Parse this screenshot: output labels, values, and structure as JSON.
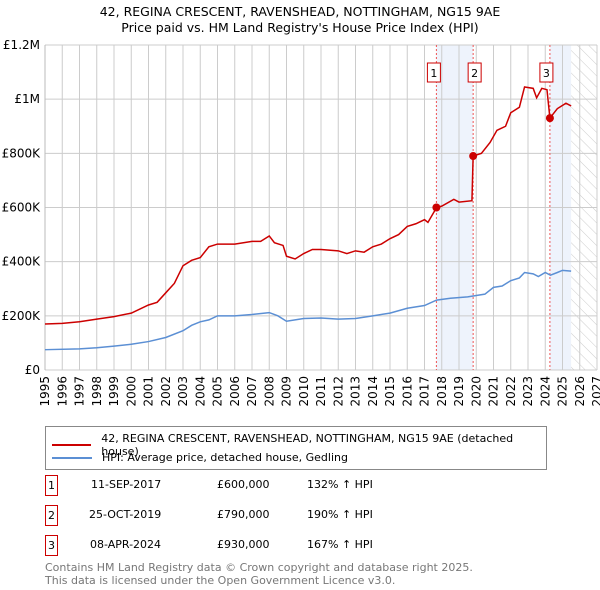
{
  "title": "42, REGINA CRESCENT, RAVENSHEAD, NOTTINGHAM, NG15 9AE",
  "subtitle": "Price paid vs. HM Land Registry's House Price Index (HPI)",
  "colors": {
    "property": "#cc0000",
    "hpi": "#5b8fd4",
    "shade": "#eef3fc"
  },
  "chart_data": {
    "type": "line",
    "title": "42, REGINA CRESCENT, RAVENSHEAD, NOTTINGHAM, NG15 9AE — Price paid vs. HM Land Registry's House Price Index (HPI)",
    "xlim": [
      1995,
      2027
    ],
    "ylim": [
      0,
      1200000
    ],
    "x_ticks": [
      "1995",
      "1996",
      "1997",
      "1998",
      "1999",
      "2000",
      "2001",
      "2002",
      "2003",
      "2004",
      "2005",
      "2006",
      "2007",
      "2008",
      "2009",
      "2010",
      "2011",
      "2012",
      "2013",
      "2014",
      "2015",
      "2016",
      "2017",
      "2018",
      "2019",
      "2020",
      "2021",
      "2022",
      "2023",
      "2024",
      "2025",
      "2026",
      "2027"
    ],
    "y_ticks": [
      {
        "v": 0,
        "label": "£0"
      },
      {
        "v": 200000,
        "label": "£200K"
      },
      {
        "v": 400000,
        "label": "£400K"
      },
      {
        "v": 600000,
        "label": "£600K"
      },
      {
        "v": 800000,
        "label": "£800K"
      },
      {
        "v": 1000000,
        "label": "£1M"
      },
      {
        "v": 1200000,
        "label": "£1.2M"
      }
    ],
    "grid": true,
    "series": [
      {
        "name": "42, REGINA CRESCENT, RAVENSHEAD, NOTTINGHAM, NG15 9AE (detached house)",
        "color": "#cc0000",
        "x": [
          1995,
          1996,
          1997,
          1998,
          1999,
          2000,
          2001,
          2001.5,
          2002,
          2002.5,
          2003,
          2003.5,
          2004,
          2004.5,
          2005,
          2006,
          2007,
          2007.5,
          2008,
          2008.3,
          2008.8,
          2009,
          2009.5,
          2010,
          2010.5,
          2011,
          2012,
          2012.5,
          2013,
          2013.5,
          2014,
          2014.5,
          2015,
          2015.5,
          2016,
          2016.5,
          2017,
          2017.2,
          2017.7,
          2018,
          2018.7,
          2019,
          2019.75,
          2019.82,
          2020.3,
          2020.8,
          2021.2,
          2021.7,
          2022,
          2022.5,
          2022.8,
          2023.3,
          2023.5,
          2023.8,
          2024.1,
          2024.27,
          2024.7,
          2025.2,
          2025.5
        ],
        "y": [
          170000,
          172000,
          178000,
          188000,
          197000,
          210000,
          240000,
          250000,
          285000,
          320000,
          385000,
          405000,
          415000,
          455000,
          465000,
          465000,
          475000,
          475000,
          495000,
          470000,
          460000,
          420000,
          410000,
          430000,
          445000,
          445000,
          440000,
          430000,
          440000,
          435000,
          455000,
          465000,
          485000,
          500000,
          530000,
          540000,
          555000,
          545000,
          600000,
          605000,
          630000,
          620000,
          625000,
          790000,
          800000,
          840000,
          885000,
          900000,
          950000,
          970000,
          1045000,
          1040000,
          1005000,
          1040000,
          1035000,
          930000,
          965000,
          985000,
          975000
        ]
      },
      {
        "name": "HPI: Average price, detached house, Gedling",
        "color": "#5b8fd4",
        "x": [
          1995,
          1997,
          1998,
          1999,
          2000,
          2001,
          2002,
          2003,
          2003.5,
          2004,
          2004.5,
          2005,
          2006,
          2007,
          2008,
          2008.5,
          2009,
          2010,
          2011,
          2012,
          2013,
          2014,
          2015,
          2016,
          2017,
          2017.7,
          2018.5,
          2019.5,
          2020,
          2020.5,
          2021,
          2021.5,
          2022,
          2022.5,
          2022.8,
          2023.3,
          2023.6,
          2024,
          2024.3,
          2024.7,
          2025,
          2025.5
        ],
        "y": [
          75000,
          78000,
          82000,
          88000,
          95000,
          105000,
          120000,
          145000,
          165000,
          178000,
          185000,
          200000,
          200000,
          205000,
          212000,
          200000,
          180000,
          190000,
          192000,
          188000,
          190000,
          200000,
          210000,
          228000,
          238000,
          258000,
          265000,
          270000,
          275000,
          280000,
          305000,
          310000,
          330000,
          340000,
          360000,
          355000,
          345000,
          360000,
          350000,
          360000,
          368000,
          365000
        ]
      }
    ],
    "sales": [
      {
        "n": "1",
        "x": 2017.69,
        "y": 600000
      },
      {
        "n": "2",
        "x": 2019.82,
        "y": 790000
      },
      {
        "n": "3",
        "x": 2024.27,
        "y": 930000
      }
    ],
    "shaded": [
      [
        2017.69,
        2019.82
      ],
      [
        2024.27,
        2025.5
      ]
    ],
    "forecast_hatch": [
      2025.5,
      2027
    ]
  },
  "legend": [
    {
      "label": "42, REGINA CRESCENT, RAVENSHEAD, NOTTINGHAM, NG15 9AE (detached house)"
    },
    {
      "label": "HPI: Average price, detached house, Gedling"
    }
  ],
  "transactions": [
    {
      "n": "1",
      "date": "11-SEP-2017",
      "price": "£600,000",
      "hpi": "132% ↑ HPI"
    },
    {
      "n": "2",
      "date": "25-OCT-2019",
      "price": "£790,000",
      "hpi": "190% ↑ HPI"
    },
    {
      "n": "3",
      "date": "08-APR-2024",
      "price": "£930,000",
      "hpi": "167% ↑ HPI"
    }
  ],
  "footer": [
    "Contains HM Land Registry data © Crown copyright and database right 2025.",
    "This data is licensed under the Open Government Licence v3.0."
  ]
}
